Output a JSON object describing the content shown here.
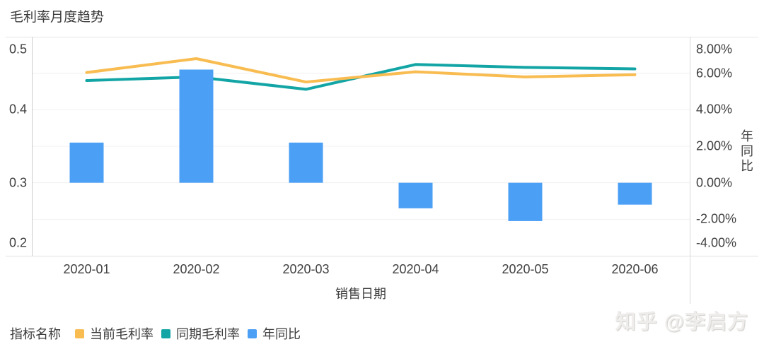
{
  "title": "毛利率月度趋势",
  "x_axis_title": "销售日期",
  "right_axis_title": "年同比",
  "legend_title": "指标名称",
  "watermark": "知乎 @李启方",
  "colors": {
    "current_margin": "#F8BC51",
    "prior_margin": "#13A5A5",
    "yoy_bar": "#4B9FF5",
    "text": "#404040",
    "gridline": "#f1f1f1"
  },
  "chart_data": {
    "type": "combo (line + bar, dual axis)",
    "title": "毛利率月度趋势",
    "xlabel": "销售日期",
    "categories": [
      "2020-01",
      "2020-02",
      "2020-03",
      "2020-04",
      "2020-05",
      "2020-06"
    ],
    "left_axis": {
      "min": 0.2,
      "max": 0.5,
      "tick_labels": [
        "0.5",
        "0.4",
        "0.3",
        "0.2"
      ]
    },
    "right_axis": {
      "title": "年同比",
      "min": -4,
      "max": 8,
      "tick_labels": [
        "8.00%",
        "6.00%",
        "4.00%",
        "2.00%",
        "0.00%",
        "-2.00%",
        "-4.00%"
      ],
      "grid_percents": [
        6,
        4,
        2,
        0,
        -2
      ]
    },
    "series": [
      {
        "name": "当前毛利率",
        "type": "line",
        "axis": "left",
        "color": "#F8BC51",
        "values": [
          0.451,
          0.47,
          0.438,
          0.452,
          0.445,
          0.448
        ]
      },
      {
        "name": "同期毛利率",
        "type": "line",
        "axis": "left",
        "color": "#13A5A5",
        "values": [
          0.44,
          0.445,
          0.428,
          0.462,
          0.458,
          0.456
        ]
      },
      {
        "name": "年同比",
        "type": "bar",
        "axis": "right",
        "color": "#4B9FF5",
        "values_percent": [
          2.2,
          6.2,
          2.2,
          -1.4,
          -2.1,
          -1.2
        ]
      }
    ],
    "legend_position": "bottom-left",
    "grid": true
  }
}
